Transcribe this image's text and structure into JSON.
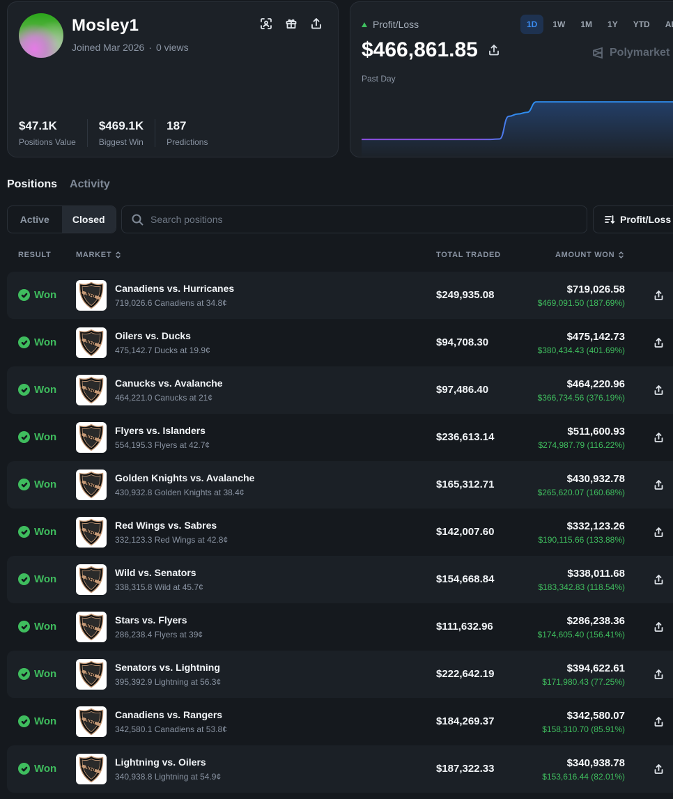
{
  "profile": {
    "username": "Mosley1",
    "joined": "Joined Mar 2026",
    "views": "0 views",
    "stats": [
      {
        "value": "$47.1K",
        "label": "Positions Value"
      },
      {
        "value": "$469.1K",
        "label": "Biggest Win"
      },
      {
        "value": "187",
        "label": "Predictions"
      }
    ],
    "icons": [
      "scan-icon",
      "gift-icon",
      "share-icon"
    ]
  },
  "pnl": {
    "label": "Profit/Loss",
    "value": "$466,861.85",
    "period": "Past Day",
    "ranges": [
      "1D",
      "1W",
      "1M",
      "1Y",
      "YTD",
      "ALL"
    ],
    "active_range": "1D",
    "brand": "Polymarket",
    "colors": {
      "line_start": "#8a4fe0",
      "line_end": "#2f8df0",
      "up": "#3fbf5f"
    },
    "chart": {
      "points": [
        0.05,
        0.05,
        0.05,
        0.05,
        0.05,
        0.05,
        0.05,
        0.05,
        0.05,
        0.05,
        0.05,
        0.05,
        0.05,
        0.05,
        0.05,
        0.06,
        0.62,
        0.68,
        0.72,
        0.98,
        0.98,
        0.98,
        0.98,
        0.98,
        0.98,
        0.98,
        0.98,
        0.98,
        0.98,
        0.98,
        0.98,
        0.98,
        0.98,
        0.98,
        0.98,
        0.98
      ]
    }
  },
  "tabs": [
    "Positions",
    "Activity"
  ],
  "filters": {
    "active": "Active",
    "closed": "Closed"
  },
  "search": {
    "placeholder": "Search positions"
  },
  "sort": {
    "label": "Profit/Loss"
  },
  "columns": {
    "result": "RESULT",
    "market": "MARKET",
    "traded": "TOTAL TRADED",
    "won": "AMOUNT WON"
  },
  "rows": [
    {
      "result": "Won",
      "title": "Canadiens vs. Hurricanes",
      "sub": "719,026.6 Canadiens at 34.8¢",
      "traded": "$249,935.08",
      "amount": "$719,026.58",
      "pnl": "$469,091.50 (187.69%)"
    },
    {
      "result": "Won",
      "title": "Oilers vs. Ducks",
      "sub": "475,142.7 Ducks at 19.9¢",
      "traded": "$94,708.30",
      "amount": "$475,142.73",
      "pnl": "$380,434.43 (401.69%)"
    },
    {
      "result": "Won",
      "title": "Canucks vs. Avalanche",
      "sub": "464,221.0 Canucks at 21¢",
      "traded": "$97,486.40",
      "amount": "$464,220.96",
      "pnl": "$366,734.56 (376.19%)"
    },
    {
      "result": "Won",
      "title": "Flyers vs. Islanders",
      "sub": "554,195.3 Flyers at 42.7¢",
      "traded": "$236,613.14",
      "amount": "$511,600.93",
      "pnl": "$274,987.79 (116.22%)"
    },
    {
      "result": "Won",
      "title": "Golden Knights vs. Avalanche",
      "sub": "430,932.8 Golden Knights at 38.4¢",
      "traded": "$165,312.71",
      "amount": "$430,932.78",
      "pnl": "$265,620.07 (160.68%)"
    },
    {
      "result": "Won",
      "title": "Red Wings vs. Sabres",
      "sub": "332,123.3 Red Wings at 42.8¢",
      "traded": "$142,007.60",
      "amount": "$332,123.26",
      "pnl": "$190,115.66 (133.88%)"
    },
    {
      "result": "Won",
      "title": "Wild vs. Senators",
      "sub": "338,315.8 Wild at 45.7¢",
      "traded": "$154,668.84",
      "amount": "$338,011.68",
      "pnl": "$183,342.83 (118.54%)"
    },
    {
      "result": "Won",
      "title": "Stars vs. Flyers",
      "sub": "286,238.4 Flyers at 39¢",
      "traded": "$111,632.96",
      "amount": "$286,238.36",
      "pnl": "$174,605.40 (156.41%)"
    },
    {
      "result": "Won",
      "title": "Senators vs. Lightning",
      "sub": "395,392.9 Lightning at 56.3¢",
      "traded": "$222,642.19",
      "amount": "$394,622.61",
      "pnl": "$171,980.43 (77.25%)"
    },
    {
      "result": "Won",
      "title": "Canadiens vs. Rangers",
      "sub": "342,580.1 Canadiens at 53.8¢",
      "traded": "$184,269.37",
      "amount": "$342,580.07",
      "pnl": "$158,310.70 (85.91%)"
    },
    {
      "result": "Won",
      "title": "Lightning vs. Oilers",
      "sub": "340,938.8 Lightning at 54.9¢",
      "traded": "$187,322.33",
      "amount": "$340,938.78",
      "pnl": "$153,616.44 (82.01%)"
    }
  ],
  "row_logo": {
    "text": "NHL",
    "icon": "nhl-shield-icon"
  }
}
